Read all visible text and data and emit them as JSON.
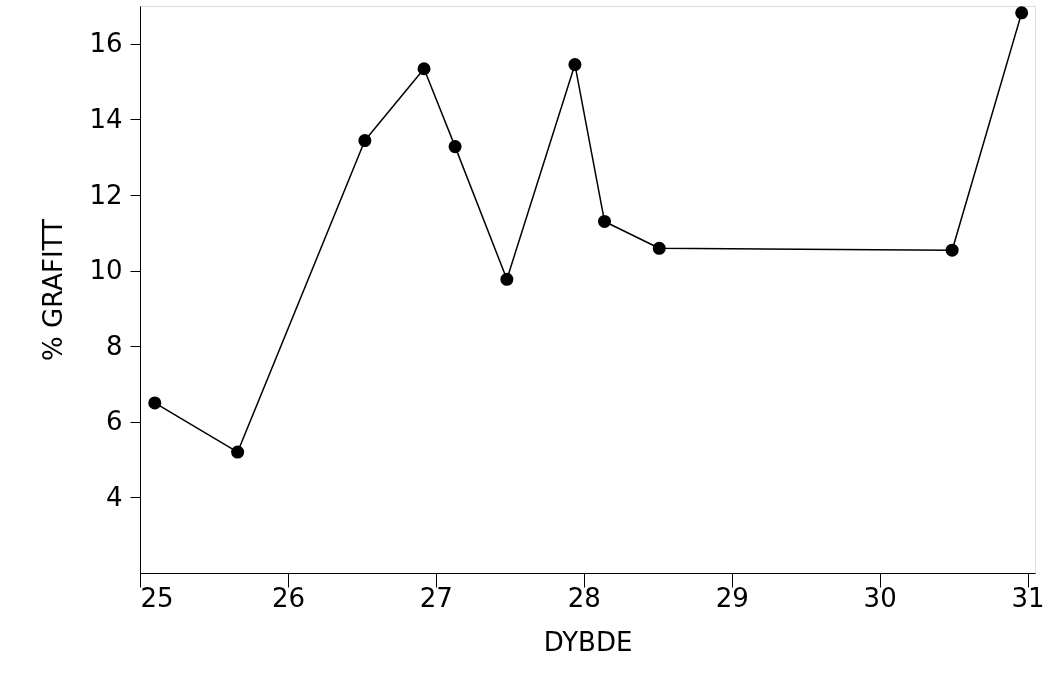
{
  "chart_data": {
    "type": "line",
    "xlabel": "DYBDE",
    "ylabel": "% GRAFITT",
    "x": [
      25.1,
      25.66,
      26.52,
      26.92,
      27.13,
      27.48,
      27.94,
      28.14,
      28.51,
      30.49,
      30.96
    ],
    "series": [
      {
        "color": "#000000",
        "values": [
          6.5,
          5.2,
          13.44,
          15.34,
          13.28,
          9.77,
          15.45,
          11.3,
          10.59,
          10.54,
          16.82
        ]
      }
    ],
    "xlim": [
      25,
      31.05
    ],
    "xticks": [
      25,
      26,
      27,
      28,
      29,
      30,
      31
    ],
    "ylim": [
      2,
      17
    ],
    "yticks": [
      4,
      6,
      8,
      10,
      12,
      14,
      16
    ],
    "grid": false,
    "marker": "circle",
    "line_style": "solid"
  }
}
